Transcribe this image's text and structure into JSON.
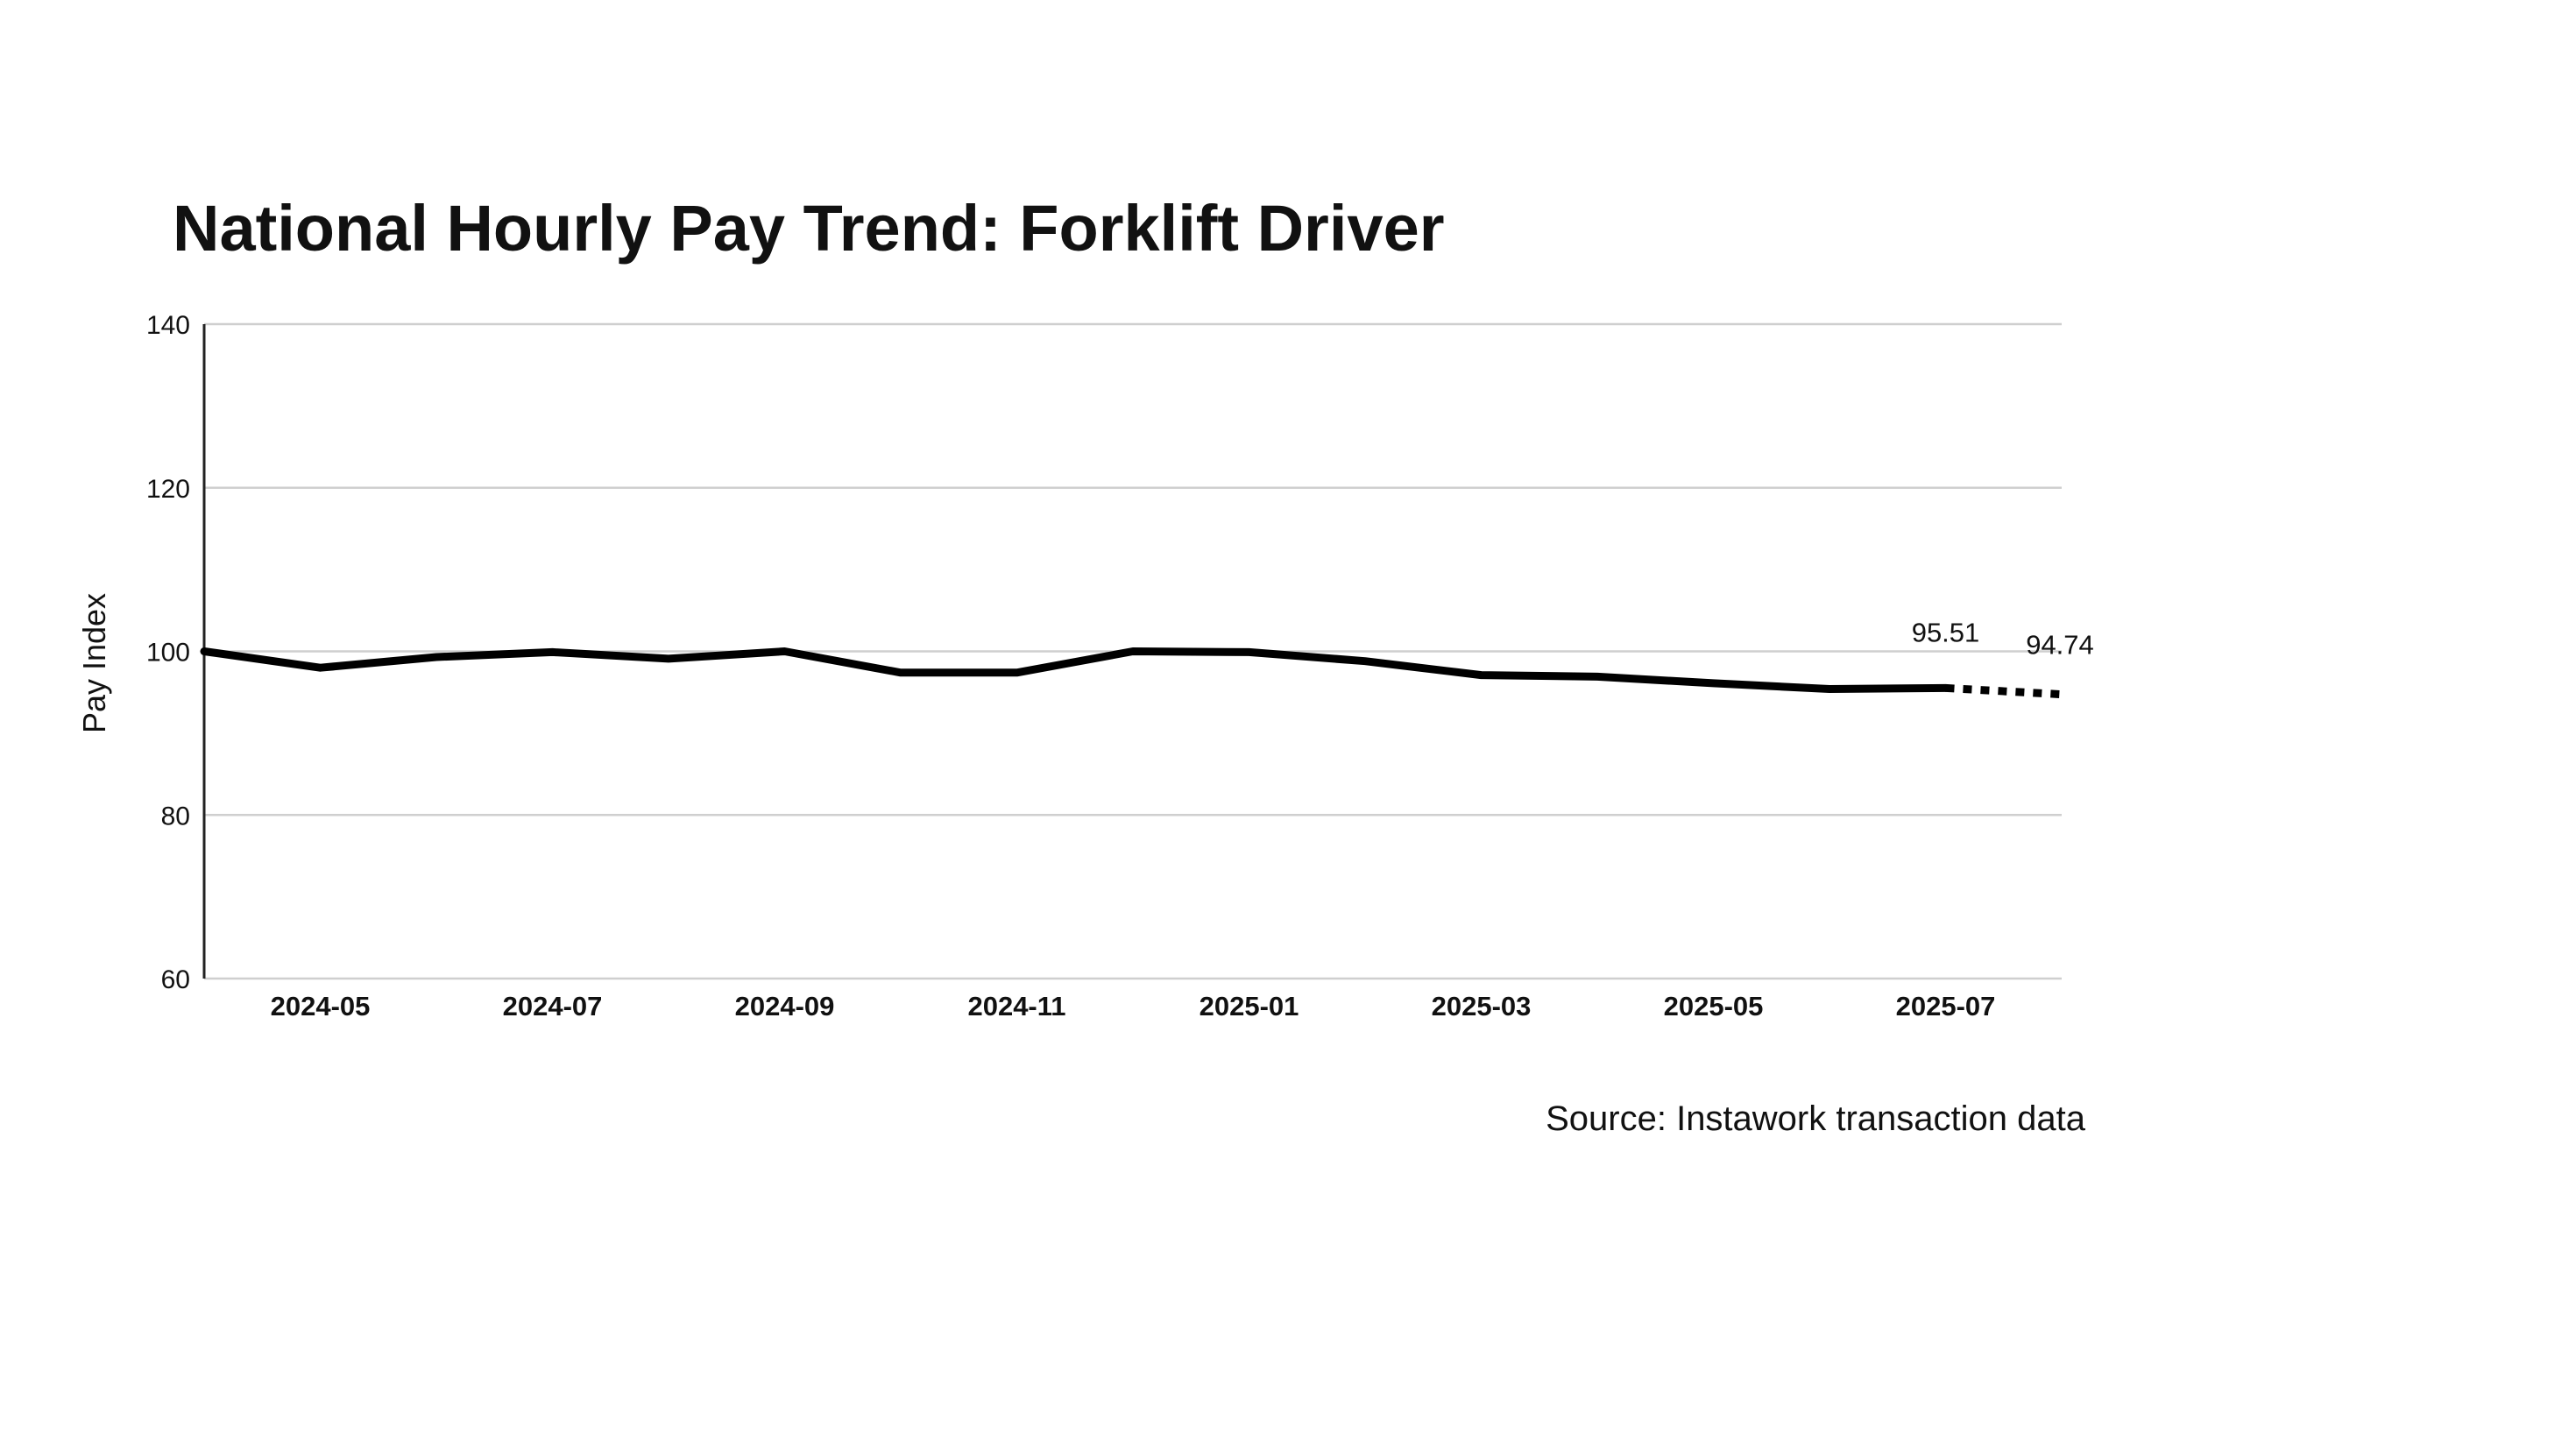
{
  "chart_data": {
    "type": "line",
    "title": "National Hourly Pay Trend: Forklift Driver",
    "ylabel": "Pay Index",
    "xlabel": "",
    "ylim": [
      60,
      140
    ],
    "yticks": [
      60,
      80,
      100,
      120,
      140
    ],
    "x_tick_labels": [
      "2024-05",
      "2024-07",
      "2024-09",
      "2024-11",
      "2025-01",
      "2025-03",
      "2025-05",
      "2025-07"
    ],
    "grid": "horizontal",
    "series": [
      {
        "style": "solid",
        "x": [
          "2024-04",
          "2024-05",
          "2024-06",
          "2024-07",
          "2024-08",
          "2024-09",
          "2024-10",
          "2024-11",
          "2024-12",
          "2025-01",
          "2025-02",
          "2025-03",
          "2025-04",
          "2025-05",
          "2025-06",
          "2025-07"
        ],
        "y": [
          100.0,
          98.0,
          99.3,
          99.9,
          99.1,
          100.0,
          97.4,
          97.4,
          100.0,
          99.9,
          98.8,
          97.1,
          96.9,
          96.1,
          95.4,
          95.51
        ]
      },
      {
        "style": "dotted",
        "x": [
          "2025-07",
          "2025-08"
        ],
        "y": [
          95.51,
          94.74
        ]
      }
    ],
    "annotations": [
      {
        "x": "2025-07",
        "text": "95.51"
      },
      {
        "x": "2025-08",
        "text": "94.74"
      }
    ],
    "source": "Source: Instawork transaction data"
  }
}
